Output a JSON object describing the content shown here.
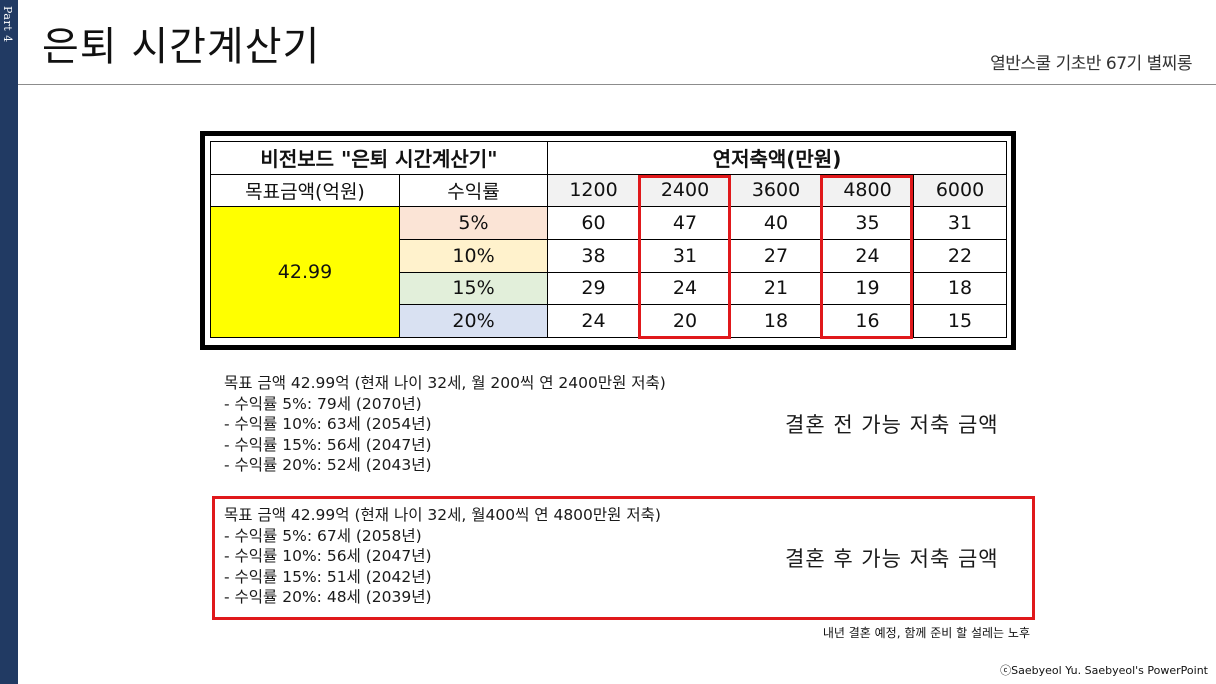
{
  "side_label": "Part 4",
  "title": "은퇴 시간계산기",
  "subtitle": "열반스쿨 기초반 67기 별찌롱",
  "table": {
    "left_header": "비전보드 \"은퇴 시간계산기\"",
    "right_header": "연저축액(만원)",
    "goal_label": "목표금액(억원)",
    "rate_label": "수익률",
    "years": [
      "1200",
      "2400",
      "3600",
      "4800",
      "6000"
    ],
    "goal_value": "42.99",
    "rows": [
      {
        "rate": "5%",
        "values": [
          "60",
          "47",
          "40",
          "35",
          "31"
        ]
      },
      {
        "rate": "10%",
        "values": [
          "38",
          "31",
          "27",
          "24",
          "22"
        ]
      },
      {
        "rate": "15%",
        "values": [
          "29",
          "24",
          "21",
          "19",
          "18"
        ]
      },
      {
        "rate": "20%",
        "values": [
          "24",
          "20",
          "18",
          "16",
          "15"
        ]
      }
    ]
  },
  "before": {
    "lines": [
      "목표 금액 42.99억 (현재 나이 32세, 월 200씩 연 2400만원 저축)",
      "- 수익률 5%: 79세 (2070년)",
      "- 수익률 10%: 63세 (2054년)",
      "- 수익률 15%: 56세 (2047년)",
      "- 수익률 20%: 52세 (2043년)"
    ],
    "label": "결혼 전 가능 저축 금액"
  },
  "after": {
    "lines": [
      "목표 금액 42.99억 (현재 나이 32세, 월400씩 연 4800만원 저축)",
      "- 수익률 5%: 67세 (2058년)",
      "- 수익률 10%: 56세 (2047년)",
      "- 수익률 15%: 51세 (2042년)",
      "- 수익률 20%: 48세 (2039년)"
    ],
    "label": "결혼 후 가능 저축 금액"
  },
  "footnote": "내년 결혼 예정, 함께 준비 할 설레는 노후",
  "copyright": "ⓒSaebyeol Yu.  Saebyeol's PowerPoint",
  "colors": {
    "sidebar": "#213a63",
    "highlight_red": "#e0181b",
    "goal_yellow": "#ffff00",
    "rate_5": "#fbe4d6",
    "rate_10": "#fff2cc",
    "rate_15": "#e2efda",
    "rate_20": "#d9e1f2"
  }
}
